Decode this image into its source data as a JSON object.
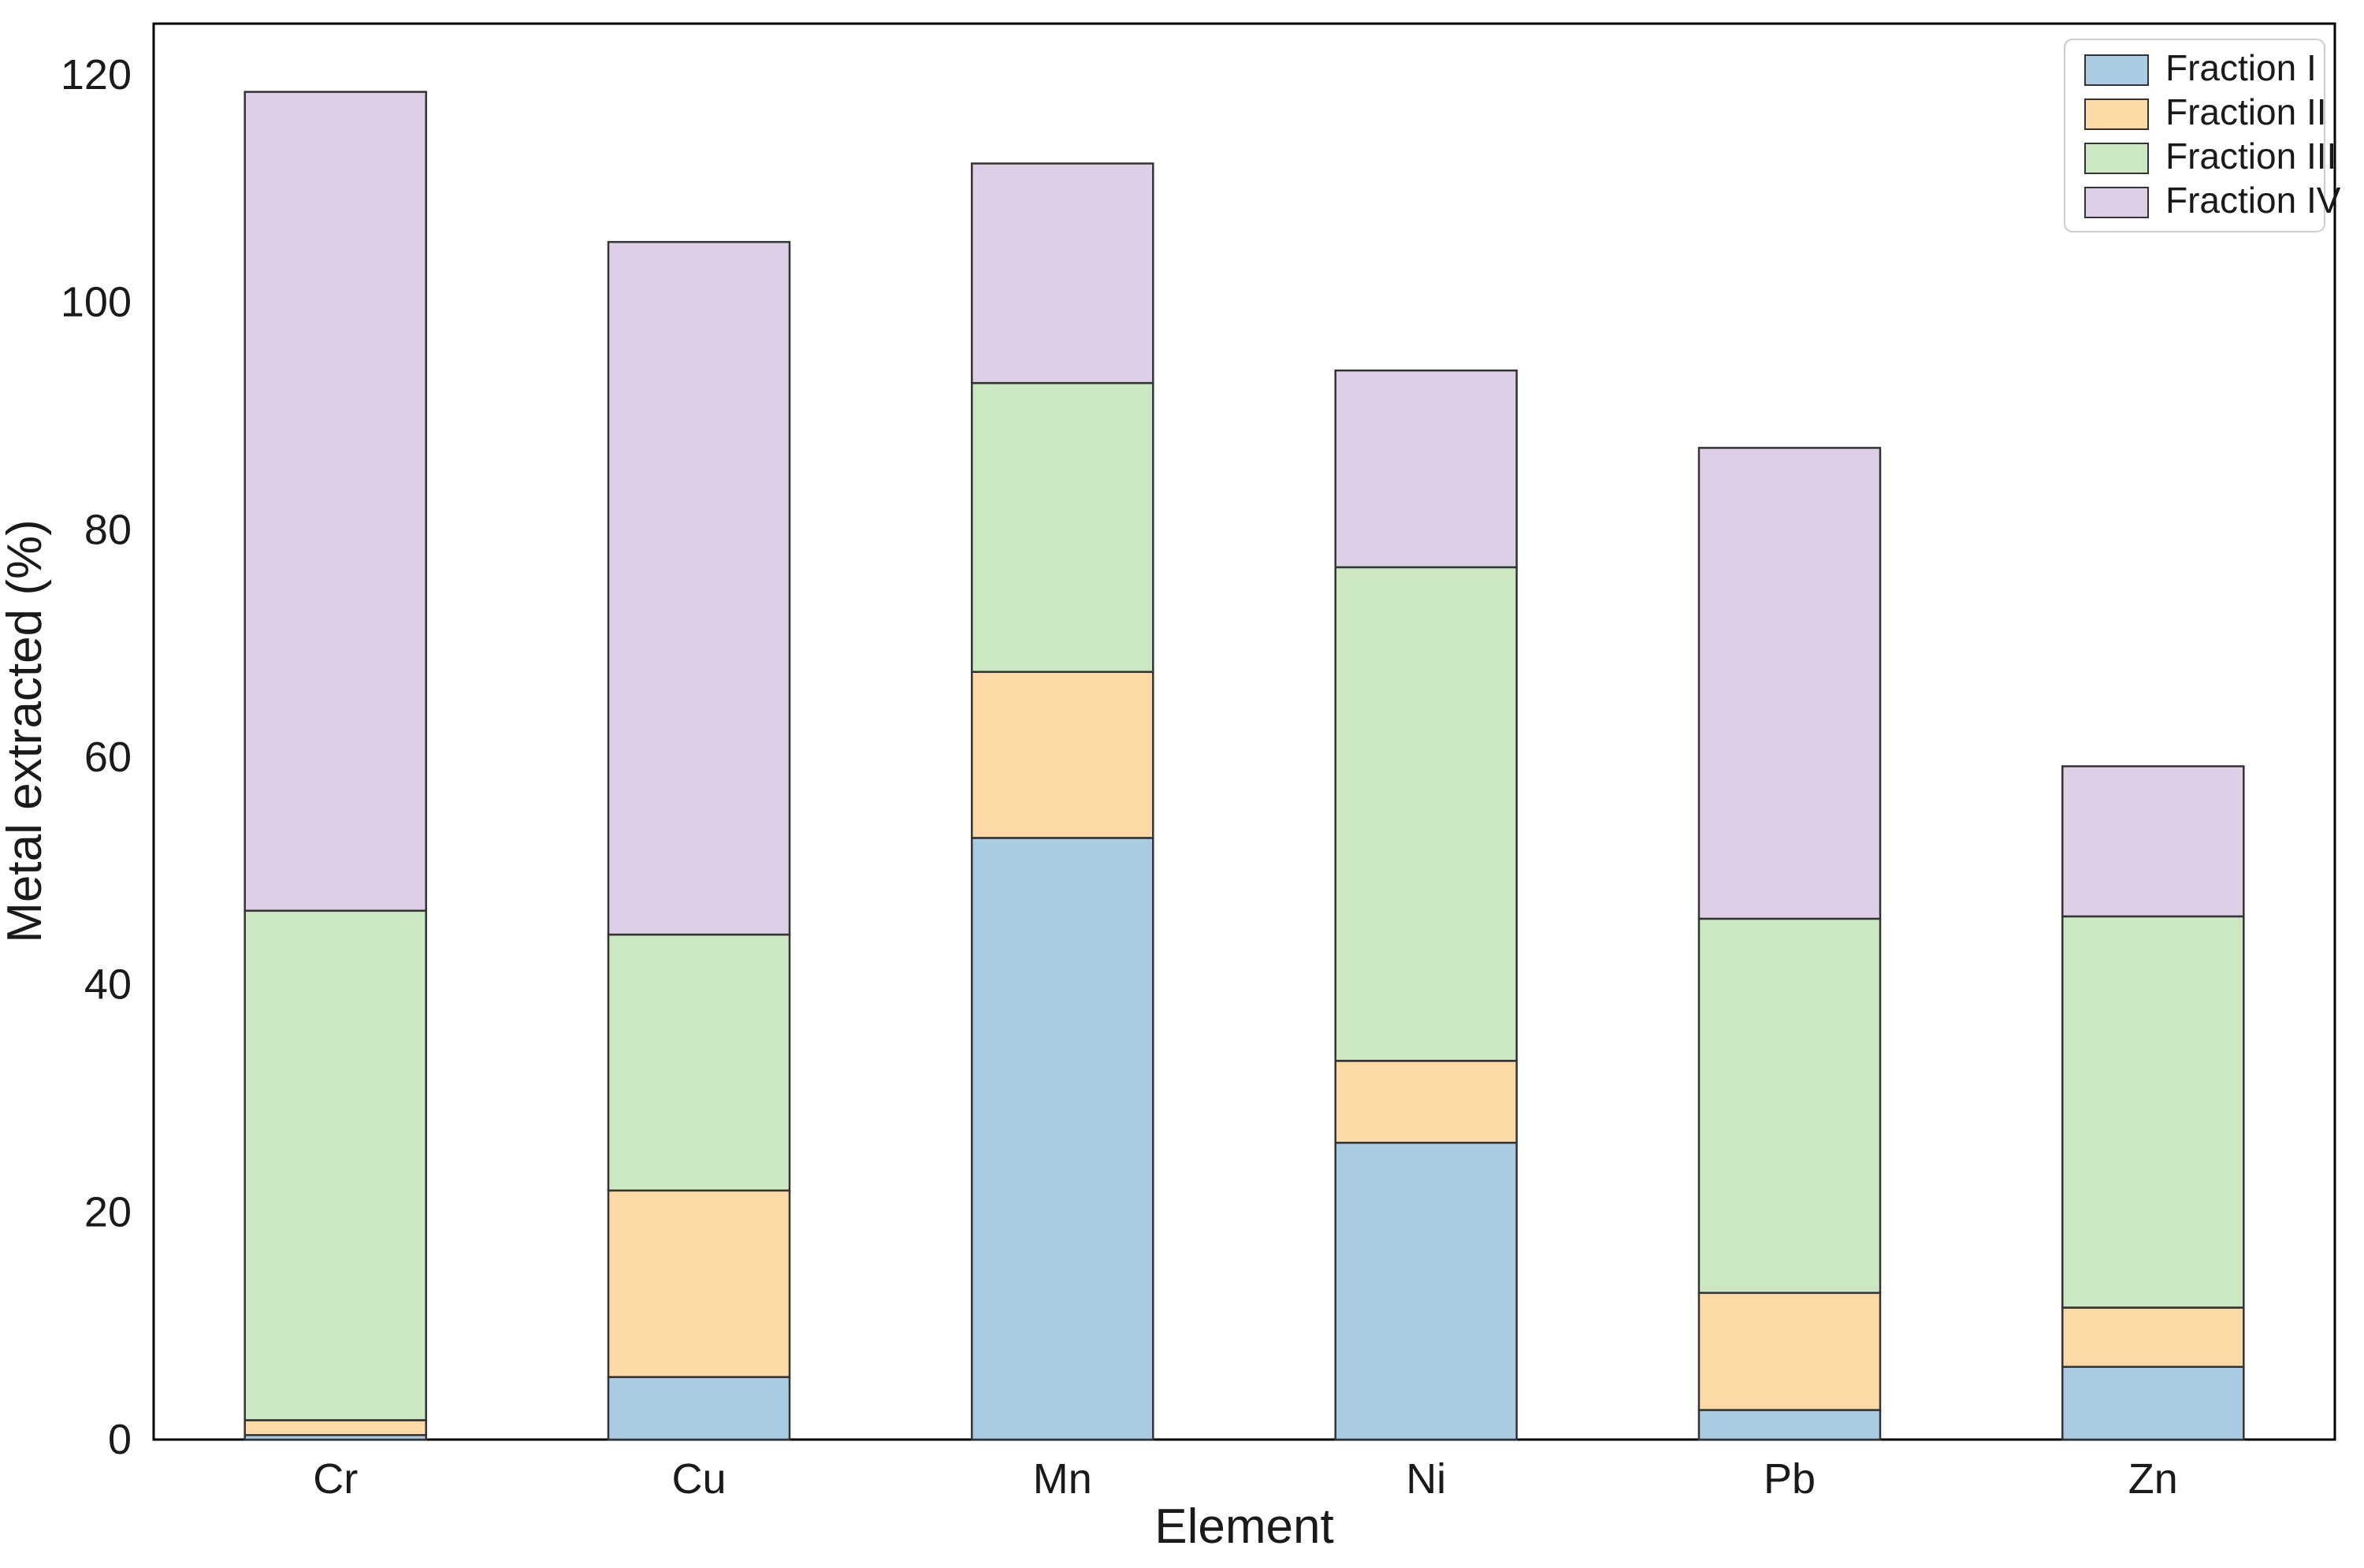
{
  "chart_data": {
    "type": "bar",
    "stacked": true,
    "title": "",
    "xlabel": "Element",
    "ylabel": "Metal extracted (%)",
    "categories": [
      "Cr",
      "Cu",
      "Mn",
      "Ni",
      "Pb",
      "Zn"
    ],
    "series": [
      {
        "name": "Fraction I",
        "color": "#a9cce3",
        "values": [
          0.4,
          5.5,
          52.9,
          26.1,
          2.6,
          6.4
        ]
      },
      {
        "name": "Fraction II",
        "color": "#fdd9a6",
        "values": [
          1.3,
          16.4,
          14.6,
          7.2,
          10.3,
          5.2
        ]
      },
      {
        "name": "Fraction III",
        "color": "#cbe8c3",
        "values": [
          44.8,
          22.5,
          25.4,
          43.4,
          32.9,
          34.4
        ]
      },
      {
        "name": "Fraction IV",
        "color": "#dccfe6",
        "values": [
          72.0,
          60.9,
          19.3,
          17.3,
          41.4,
          13.2
        ]
      }
    ],
    "stack_totals": [
      118.5,
      105.3,
      112.2,
      94.0,
      87.2,
      59.2
    ],
    "yticks": [
      0,
      20,
      40,
      60,
      80,
      100,
      120
    ],
    "ylim": [
      0,
      124.5
    ],
    "grid": false,
    "legend_position": "upper right",
    "colors": {
      "bar_edge": "#333333",
      "spine": "#000000",
      "text": "#1a1a1a",
      "legend_border": "#cccccc",
      "legend_bg": "#ffffff"
    }
  }
}
